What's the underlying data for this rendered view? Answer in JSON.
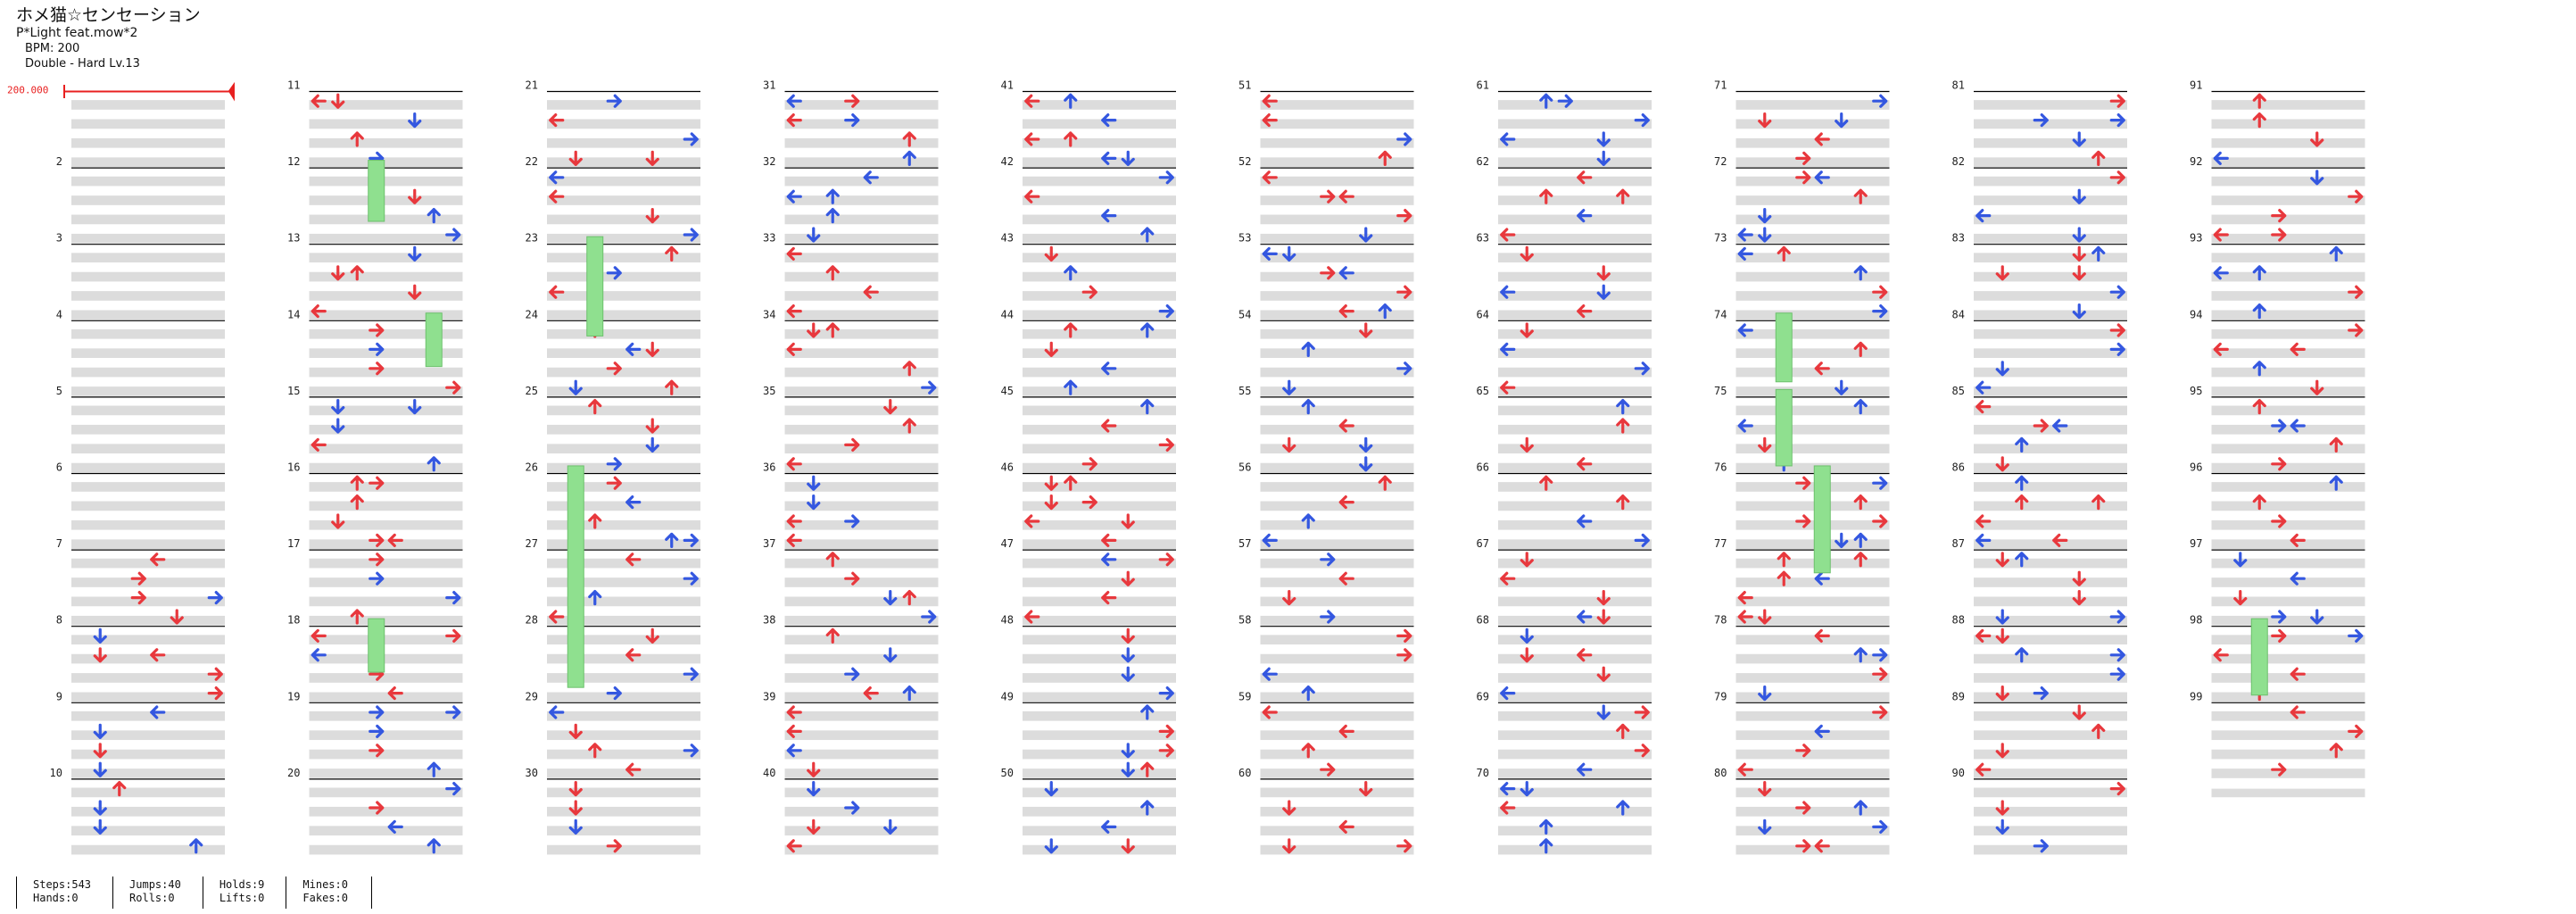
{
  "song": {
    "title": "ホメ猫☆センセーション",
    "artist": "P*Light feat.mow*2",
    "bpm": "BPM: 200",
    "difficulty": "Double - Hard Lv.13"
  },
  "bpm_marker": "200.000",
  "measure_numbers": [
    "",
    "2",
    "3",
    "4",
    "5",
    "6",
    "7",
    "8",
    "9",
    "10",
    "11",
    "12",
    "13",
    "14",
    "15",
    "16",
    "17",
    "18",
    "19",
    "20",
    "21",
    "22",
    "23",
    "24",
    "25",
    "26",
    "27",
    "28",
    "29",
    "30",
    "31",
    "32",
    "33",
    "34",
    "35",
    "36",
    "37",
    "38",
    "39",
    "40",
    "41",
    "42",
    "43",
    "44",
    "45",
    "46",
    "47",
    "48",
    "49",
    "50",
    "51",
    "52",
    "53",
    "54",
    "55",
    "56",
    "57",
    "58",
    "59",
    "60",
    "61",
    "62",
    "63",
    "64",
    "65",
    "66",
    "67",
    "68",
    "69",
    "70",
    "71",
    "72",
    "73",
    "74",
    "75",
    "76",
    "77",
    "78",
    "79",
    "80",
    "81",
    "82",
    "83",
    "84",
    "85",
    "86",
    "87",
    "88",
    "89",
    "90",
    "91",
    "92",
    "93",
    "94",
    "95",
    "96",
    "97",
    "98",
    "99"
  ],
  "layout": {
    "columns": 10,
    "measures_per_column": 10,
    "total_measures": 99
  },
  "colors": {
    "red_arrow": "#e8383d",
    "blue_arrow": "#3457e0",
    "hold": "#8fe08f",
    "stripe": "#dcdcdc",
    "bpm": "#e82020"
  },
  "stats": {
    "steps": "Steps:543",
    "hands": "Hands:0",
    "jumps": "Jumps:40",
    "rolls": "Rolls:0",
    "holds": "Holds:9",
    "lifts": "Lifts:0",
    "mines": "Mines:0",
    "fakes": "Fakes:0"
  }
}
